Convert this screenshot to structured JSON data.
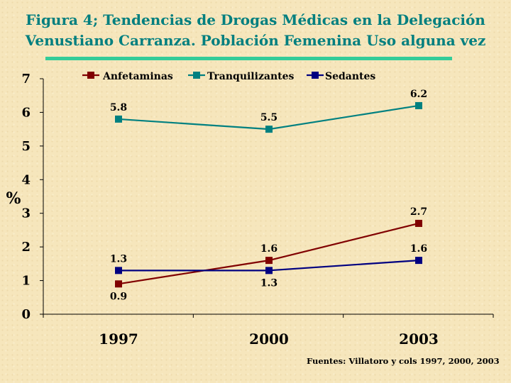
{
  "title": {
    "line1": "Figura 4; Tendencias de Drogas Médicas en  la Delegación",
    "line2": "Venustiano Carranza. Población Femenina Uso alguna vez"
  },
  "accent_color": "#33cc99",
  "title_color": "#007f7f",
  "source": "Fuentes: Villatoro y cols 1997, 2000, 2003",
  "chart_data": {
    "type": "line",
    "ylabel": "%",
    "xlabel": "",
    "ylim": [
      0,
      7
    ],
    "yticks": [
      0,
      1,
      2,
      3,
      4,
      5,
      6,
      7
    ],
    "categories": [
      "1997",
      "2000",
      "2003"
    ],
    "legend_position": "top",
    "grid": false,
    "series": [
      {
        "name": "Anfetaminas",
        "color": "#800000",
        "values": [
          0.9,
          1.6,
          2.7
        ],
        "labels": [
          "0.9",
          "1.6",
          "2.7"
        ],
        "label_placement": [
          "below",
          "above",
          "above"
        ]
      },
      {
        "name": "Tranquilizantes",
        "color": "#008080",
        "values": [
          5.8,
          5.5,
          6.2
        ],
        "labels": [
          "5.8",
          "5.5",
          "6.2"
        ],
        "label_placement": [
          "above",
          "above",
          "above"
        ]
      },
      {
        "name": "Sedantes",
        "color": "#000080",
        "values": [
          1.3,
          1.3,
          1.6
        ],
        "labels": [
          "1.3",
          "1.3",
          "1.6"
        ],
        "label_placement": [
          "above",
          "below",
          "above"
        ]
      }
    ]
  }
}
